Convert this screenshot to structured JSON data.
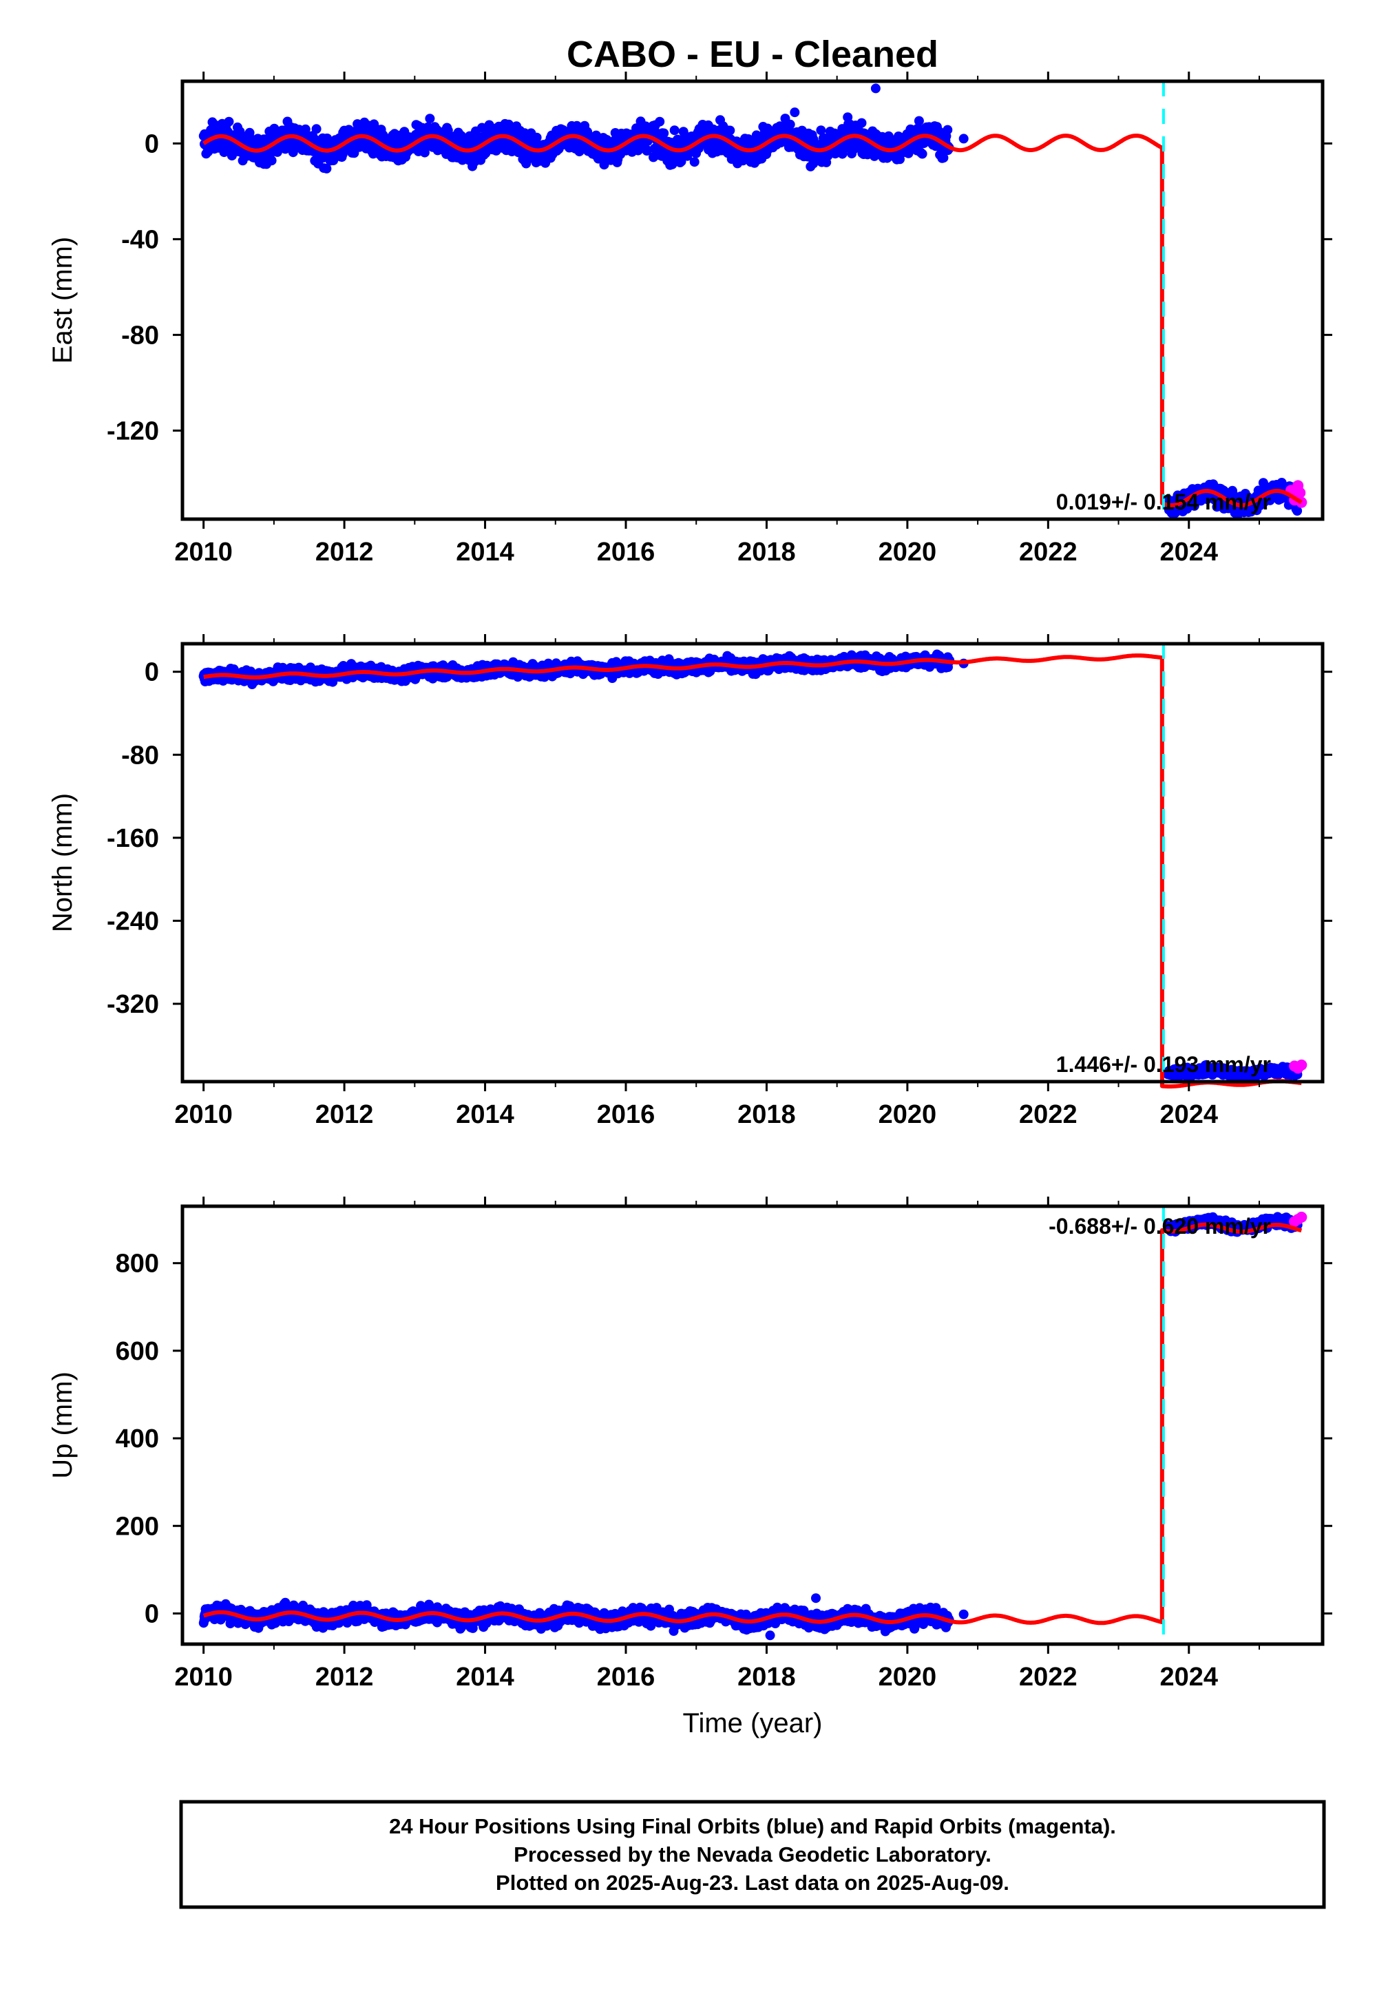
{
  "page": {
    "title": "CABO  - EU - Cleaned",
    "footer_lines": [
      "24 Hour Positions Using Final Orbits (blue) and Rapid Orbits (magenta).",
      "Processed by the Nevada Geodetic Laboratory.",
      "Plotted on 2025-Aug-23. Last data on 2025-Aug-09."
    ]
  },
  "colors": {
    "final_orbits": "#0000ff",
    "rapid_orbits": "#ff00ff",
    "model_fit": "#ff0000",
    "step_marker": "#00ffff",
    "frame": "#000000"
  },
  "chart_data": [
    {
      "type": "scatter",
      "component": "East",
      "ylabel": "East (mm)",
      "xlabel": "",
      "xlim": [
        2009.7,
        2025.9
      ],
      "ylim": [
        -157,
        26
      ],
      "xticks": [
        2010,
        2012,
        2014,
        2016,
        2018,
        2020,
        2022,
        2024
      ],
      "yticks": [
        0,
        -40,
        -80,
        -120
      ],
      "rate_label": "0.019+/- 0.154 mm/yr",
      "rate_label_position": "bottom-right",
      "step_epoch": 2023.62,
      "model": {
        "base_level": 0,
        "slope": 0.019,
        "annual_amp": 3,
        "offset_at_step": -148.5,
        "segments": [
          {
            "start": 2010.0,
            "end": 2023.62,
            "name": "pre-step"
          },
          {
            "start": 2023.62,
            "end": 2025.6,
            "name": "post-step"
          }
        ]
      },
      "final_series": [
        {
          "start": 2010.0,
          "end": 2020.6,
          "level": 0,
          "scatter": 3
        },
        {
          "start": 2023.7,
          "end": 2025.55,
          "level": -148.5,
          "scatter": 2
        }
      ],
      "outliers": [
        {
          "x": 2019.55,
          "y": 23
        },
        {
          "x": 2018.4,
          "y": 13
        },
        {
          "x": 2017.95,
          "y": 7
        },
        {
          "x": 2020.8,
          "y": 2
        }
      ],
      "rapid_points": [
        {
          "x": 2025.45,
          "y": -145
        },
        {
          "x": 2025.5,
          "y": -149
        },
        {
          "x": 2025.55,
          "y": -143
        },
        {
          "x": 2025.6,
          "y": -150
        },
        {
          "x": 2025.58,
          "y": -146
        }
      ]
    },
    {
      "type": "scatter",
      "component": "North",
      "ylabel": "North (mm)",
      "xlabel": "",
      "xlim": [
        2009.7,
        2025.9
      ],
      "ylim": [
        -395,
        27
      ],
      "xticks": [
        2010,
        2012,
        2014,
        2016,
        2018,
        2020,
        2022,
        2024
      ],
      "yticks": [
        0,
        -80,
        -160,
        -240,
        -320
      ],
      "rate_label": "1.446+/- 0.193 mm/yr",
      "rate_label_position": "bottom-right",
      "step_epoch": 2023.62,
      "model": {
        "base_level": -5,
        "slope": 1.446,
        "annual_amp": 1.5,
        "offset_at_step": -413,
        "segments": [
          {
            "start": 2010.0,
            "end": 2023.62,
            "name": "pre-step"
          },
          {
            "start": 2023.62,
            "end": 2025.6,
            "name": "post-step"
          }
        ]
      },
      "final_series": [
        {
          "start": 2010.0,
          "end": 2020.6,
          "level": -5,
          "scatter": 3
        },
        {
          "start": 2023.7,
          "end": 2025.55,
          "level": -386,
          "scatter": 2
        }
      ],
      "outliers": [
        {
          "x": 2019.4,
          "y": 16
        },
        {
          "x": 2020.6,
          "y": 11
        },
        {
          "x": 2020.8,
          "y": 8
        }
      ],
      "rapid_points": [
        {
          "x": 2025.5,
          "y": -380
        },
        {
          "x": 2025.55,
          "y": -382
        },
        {
          "x": 2025.6,
          "y": -379
        }
      ]
    },
    {
      "type": "scatter",
      "component": "Up",
      "ylabel": "Up (mm)",
      "xlabel": "Time (year)",
      "xlim": [
        2009.7,
        2025.9
      ],
      "ylim": [
        -70,
        930
      ],
      "xticks": [
        2010,
        2012,
        2014,
        2016,
        2018,
        2020,
        2022,
        2024
      ],
      "yticks": [
        0,
        200,
        400,
        600,
        800
      ],
      "rate_label": "-0.688+/- 0.620 mm/yr",
      "rate_label_position": "top-right",
      "step_epoch": 2023.62,
      "model": {
        "base_level": -5,
        "slope": -0.688,
        "annual_amp": 8,
        "offset_at_step": 895,
        "segments": [
          {
            "start": 2010.0,
            "end": 2023.62,
            "name": "pre-step"
          },
          {
            "start": 2023.62,
            "end": 2025.6,
            "name": "post-step"
          }
        ]
      },
      "final_series": [
        {
          "start": 2010.0,
          "end": 2020.6,
          "level": -5,
          "scatter": 9
        },
        {
          "start": 2023.7,
          "end": 2025.55,
          "level": 888,
          "scatter": 5
        }
      ],
      "outliers": [
        {
          "x": 2018.05,
          "y": -50
        },
        {
          "x": 2018.7,
          "y": 35
        },
        {
          "x": 2020.1,
          "y": -35
        },
        {
          "x": 2020.8,
          "y": -2
        }
      ],
      "rapid_points": [
        {
          "x": 2025.5,
          "y": 895
        },
        {
          "x": 2025.55,
          "y": 900
        },
        {
          "x": 2025.6,
          "y": 905
        }
      ]
    }
  ]
}
